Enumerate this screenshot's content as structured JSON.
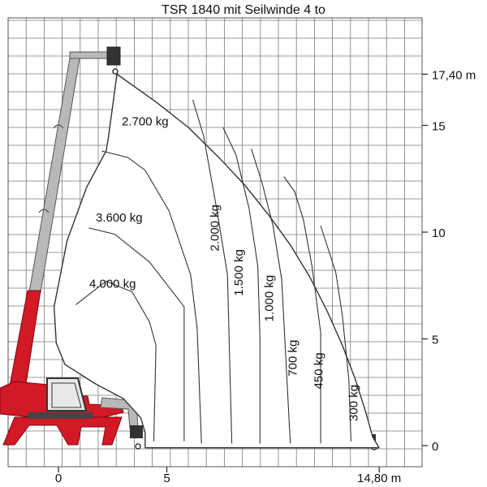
{
  "chart_data": {
    "type": "area",
    "title": "TSR 1840 mit Seilwinde 4 to",
    "x_ticks": [
      {
        "value": 0,
        "label": "0"
      },
      {
        "value": 5,
        "label": "5"
      },
      {
        "value": 14.8,
        "label": "14,80 m"
      }
    ],
    "y_ticks": [
      {
        "value": 0,
        "label": "0"
      },
      {
        "value": 5,
        "label": "5"
      },
      {
        "value": 10,
        "label": "10"
      },
      {
        "value": 15,
        "label": "15"
      },
      {
        "value": 17.4,
        "label": "17,40 m"
      }
    ],
    "xlim": [
      -2.6,
      17.0
    ],
    "ylim": [
      -1.0,
      20.0
    ],
    "grid": true,
    "zones": [
      {
        "label": "4.000 kg",
        "orientation": "horizontal"
      },
      {
        "label": "3.600 kg",
        "orientation": "horizontal"
      },
      {
        "label": "2.700 kg",
        "orientation": "horizontal"
      },
      {
        "label": "2.000 kg",
        "orientation": "vertical"
      },
      {
        "label": "1.500 kg",
        "orientation": "vertical"
      },
      {
        "label": "1.000 kg",
        "orientation": "vertical"
      },
      {
        "label": "700 kg",
        "orientation": "vertical"
      },
      {
        "label": "450 kg",
        "orientation": "vertical"
      },
      {
        "label": "300 kg",
        "orientation": "vertical"
      }
    ],
    "outer_envelope": [
      [
        2.7,
        17.4
      ],
      [
        4.5,
        16.1
      ],
      [
        6.0,
        14.9
      ],
      [
        7.4,
        13.5
      ],
      [
        8.6,
        12.2
      ],
      [
        9.7,
        10.8
      ],
      [
        10.7,
        9.4
      ],
      [
        11.6,
        7.9
      ],
      [
        12.4,
        6.3
      ],
      [
        13.1,
        4.7
      ],
      [
        13.7,
        3.1
      ],
      [
        14.2,
        1.5
      ],
      [
        14.5,
        0.4
      ],
      [
        14.8,
        -0.1
      ]
    ],
    "inner_envelope": [
      [
        2.2,
        13.8
      ],
      [
        1.3,
        12.1
      ],
      [
        0.4,
        9.6
      ],
      [
        -0.2,
        6.5
      ],
      [
        -0.1,
        4.8
      ],
      [
        0.3,
        3.8
      ],
      [
        1.7,
        2.9
      ],
      [
        3.0,
        2.2
      ],
      [
        3.8,
        1.3
      ],
      [
        4.0,
        0.6
      ],
      [
        4.0,
        -0.1
      ]
    ],
    "boundaries": [
      {
        "zone": "4.000 kg / 3.600 kg",
        "points": [
          [
            0.8,
            6.6
          ],
          [
            2.2,
            7.7
          ],
          [
            3.4,
            7.2
          ],
          [
            4.2,
            5.8
          ],
          [
            4.5,
            4.7
          ],
          [
            4.4,
            0.2
          ]
        ]
      },
      {
        "zone": "3.600 kg / 2.700 kg",
        "points": [
          [
            1.4,
            10.2
          ],
          [
            2.6,
            9.9
          ],
          [
            4.2,
            8.6
          ],
          [
            5.5,
            6.9
          ],
          [
            5.8,
            6.5
          ],
          [
            5.8,
            0.2
          ]
        ]
      },
      {
        "zone": "2.700 kg / 2.000 kg",
        "points": [
          [
            2.0,
            13.8
          ],
          [
            3.2,
            13.5
          ],
          [
            4.0,
            12.9
          ],
          [
            5.1,
            11.0
          ],
          [
            6.1,
            8.0
          ],
          [
            6.4,
            5.5
          ],
          [
            6.6,
            0.1
          ]
        ]
      },
      {
        "zone": "2.000 kg / 1.500 kg",
        "points": [
          [
            6.2,
            16.2
          ],
          [
            6.7,
            14.5
          ],
          [
            7.3,
            11.1
          ],
          [
            7.8,
            8.0
          ],
          [
            8.0,
            0.1
          ]
        ]
      },
      {
        "zone": "1.500 kg / 1.000 kg",
        "points": [
          [
            7.6,
            14.9
          ],
          [
            8.2,
            13.6
          ],
          [
            8.8,
            11.1
          ],
          [
            9.2,
            8.4
          ],
          [
            9.3,
            5.0
          ],
          [
            9.3,
            0.1
          ]
        ]
      },
      {
        "zone": "1.000 kg / 700 kg",
        "points": [
          [
            8.9,
            13.9
          ],
          [
            9.4,
            12.3
          ],
          [
            9.9,
            10.3
          ],
          [
            10.3,
            7.8
          ],
          [
            10.7,
            0.1
          ]
        ]
      },
      {
        "zone": "700 kg / 450 kg",
        "points": [
          [
            10.4,
            12.6
          ],
          [
            10.9,
            11.9
          ],
          [
            11.3,
            10.6
          ],
          [
            11.7,
            8.4
          ],
          [
            12.1,
            5.3
          ],
          [
            12.1,
            0.1
          ]
        ]
      },
      {
        "zone": "450 kg / 300 kg",
        "points": [
          [
            12.1,
            10.3
          ],
          [
            12.8,
            8.1
          ],
          [
            13.1,
            6.1
          ],
          [
            13.4,
            3.1
          ],
          [
            13.5,
            0.2
          ]
        ]
      }
    ],
    "label_positions": [
      {
        "zone": "4.000 kg",
        "x": 2.5,
        "y": 7.4
      },
      {
        "zone": "3.600 kg",
        "x": 2.8,
        "y": 10.5
      },
      {
        "zone": "2.700 kg",
        "x": 4.0,
        "y": 15.0
      },
      {
        "zone": "2.000 kg",
        "x": 7.4,
        "y": 10.2
      },
      {
        "zone": "1.500 kg",
        "x": 8.5,
        "y": 8.1
      },
      {
        "zone": "1.000 kg",
        "x": 9.9,
        "y": 6.9
      },
      {
        "zone": "700 kg",
        "x": 11.0,
        "y": 4.1
      },
      {
        "zone": "450 kg",
        "x": 12.2,
        "y": 3.5
      },
      {
        "zone": "300 kg",
        "x": 13.8,
        "y": 2.0
      }
    ]
  },
  "colors": {
    "grid": "#7a7a7a",
    "envelope": "#333333",
    "crane_red": "#d31826",
    "boom_gray": "#b9b9b9",
    "dark": "#2a2a2a",
    "text": "#111111"
  },
  "illustration": "telehandler-crane-with-winch"
}
